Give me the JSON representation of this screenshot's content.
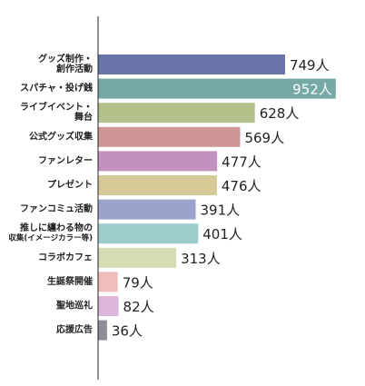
{
  "chart_data": {
    "type": "bar",
    "orientation": "horizontal",
    "categories": [
      [
        "グッズ制作・",
        "創作活動"
      ],
      [
        "スパチャ・投げ銭"
      ],
      [
        "ライブイベント・",
        "舞台"
      ],
      [
        "公式グッズ収集"
      ],
      [
        "ファンレター"
      ],
      [
        "プレゼント"
      ],
      [
        "ファンコミュ活動"
      ],
      [
        "推しに纏わる物の",
        "収集(イメージカラー等)"
      ],
      [
        "コラボカフェ"
      ],
      [
        "生誕祭開催"
      ],
      [
        "聖地巡礼"
      ],
      [
        "応援広告"
      ]
    ],
    "values": [
      749,
      952,
      628,
      569,
      477,
      476,
      391,
      401,
      313,
      79,
      82,
      36
    ],
    "value_unit": "人",
    "colors": [
      "#6b74a9",
      "#76a8a6",
      "#b3c18b",
      "#cf9696",
      "#c490c0",
      "#d5c995",
      "#9aa3cb",
      "#9dcccd",
      "#d5dcb4",
      "#f1bcbc",
      "#ddb6dc",
      "#8e8f96"
    ],
    "xlim": [
      0,
      1000
    ],
    "grid": false,
    "legend": "none"
  }
}
